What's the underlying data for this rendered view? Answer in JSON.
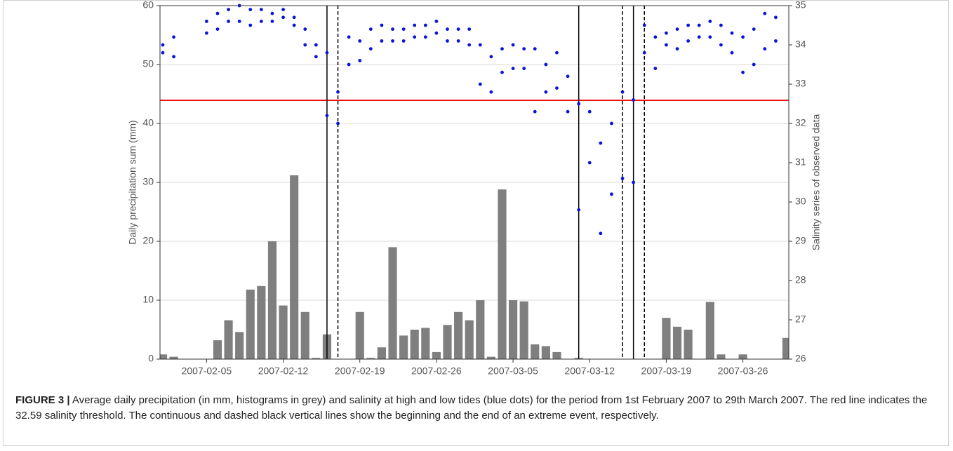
{
  "chart_data": [
    {
      "type": "bar",
      "ylabel": "Daily precipitation sum (mm)",
      "color": "#7f7f7f",
      "grid": true,
      "xlim": [
        "2007-02-01",
        "2007-03-30"
      ],
      "xticks": [
        "2007-02-05",
        "2007-02-12",
        "2007-02-19",
        "2007-02-26",
        "2007-03-05",
        "2007-03-12",
        "2007-03-19",
        "2007-03-26"
      ],
      "ylim": [
        0,
        60
      ],
      "yticks": [
        0,
        10,
        20,
        30,
        40,
        50,
        60
      ],
      "x": [
        "2007-02-01",
        "2007-02-02",
        "2007-02-03",
        "2007-02-04",
        "2007-02-05",
        "2007-02-06",
        "2007-02-07",
        "2007-02-08",
        "2007-02-09",
        "2007-02-10",
        "2007-02-11",
        "2007-02-12",
        "2007-02-13",
        "2007-02-14",
        "2007-02-15",
        "2007-02-16",
        "2007-02-17",
        "2007-02-18",
        "2007-02-19",
        "2007-02-20",
        "2007-02-21",
        "2007-02-22",
        "2007-02-23",
        "2007-02-24",
        "2007-02-25",
        "2007-02-26",
        "2007-02-27",
        "2007-02-28",
        "2007-03-01",
        "2007-03-02",
        "2007-03-03",
        "2007-03-04",
        "2007-03-05",
        "2007-03-06",
        "2007-03-07",
        "2007-03-08",
        "2007-03-09",
        "2007-03-10",
        "2007-03-11",
        "2007-03-12",
        "2007-03-13",
        "2007-03-14",
        "2007-03-15",
        "2007-03-16",
        "2007-03-17",
        "2007-03-18",
        "2007-03-19",
        "2007-03-20",
        "2007-03-21",
        "2007-03-22",
        "2007-03-23",
        "2007-03-24",
        "2007-03-25",
        "2007-03-26",
        "2007-03-27",
        "2007-03-28",
        "2007-03-29",
        "2007-03-30"
      ],
      "values": [
        0.8,
        0.4,
        0,
        0,
        0,
        3.2,
        6.6,
        4.6,
        11.8,
        12.4,
        20,
        9.1,
        31.2,
        8.0,
        0.2,
        4.2,
        0,
        0,
        8.0,
        0.2,
        2.0,
        19,
        4,
        5,
        5.3,
        1.2,
        5.8,
        8.0,
        6.6,
        10,
        0.4,
        28.8,
        10,
        9.8,
        2.5,
        2.2,
        1.2,
        0,
        0.2,
        0,
        0,
        0,
        0,
        0,
        0,
        0,
        7.0,
        5.5,
        5.0,
        0,
        9.7,
        0.8,
        0,
        0.8,
        0,
        0,
        0,
        3.6
      ]
    },
    {
      "type": "scatter",
      "ylabel": "Salinity series of observed data",
      "color": "#0a14d8",
      "ylim": [
        26,
        35
      ],
      "yticks": [
        26,
        27,
        28,
        29,
        30,
        31,
        32,
        33,
        34,
        35
      ],
      "threshold": {
        "value": 32.59,
        "color": "#ee1111"
      },
      "event_starts": [
        "2007-02-16",
        "2007-03-11",
        "2007-03-16"
      ],
      "event_ends": [
        "2007-02-17",
        "2007-03-15",
        "2007-03-17"
      ],
      "x": [
        "2007-02-01",
        "2007-02-01",
        "2007-02-02",
        "2007-02-02",
        "2007-02-05",
        "2007-02-05",
        "2007-02-06",
        "2007-02-06",
        "2007-02-07",
        "2007-02-07",
        "2007-02-08",
        "2007-02-08",
        "2007-02-09",
        "2007-02-09",
        "2007-02-10",
        "2007-02-10",
        "2007-02-11",
        "2007-02-11",
        "2007-02-12",
        "2007-02-12",
        "2007-02-13",
        "2007-02-13",
        "2007-02-14",
        "2007-02-14",
        "2007-02-15",
        "2007-02-15",
        "2007-02-16",
        "2007-02-16",
        "2007-02-17",
        "2007-02-17",
        "2007-02-18",
        "2007-02-18",
        "2007-02-19",
        "2007-02-19",
        "2007-02-20",
        "2007-02-20",
        "2007-02-21",
        "2007-02-21",
        "2007-02-22",
        "2007-02-22",
        "2007-02-23",
        "2007-02-23",
        "2007-02-24",
        "2007-02-24",
        "2007-02-25",
        "2007-02-25",
        "2007-02-26",
        "2007-02-26",
        "2007-02-27",
        "2007-02-27",
        "2007-02-28",
        "2007-02-28",
        "2007-03-01",
        "2007-03-01",
        "2007-03-02",
        "2007-03-02",
        "2007-03-03",
        "2007-03-03",
        "2007-03-04",
        "2007-03-04",
        "2007-03-05",
        "2007-03-05",
        "2007-03-06",
        "2007-03-06",
        "2007-03-07",
        "2007-03-07",
        "2007-03-08",
        "2007-03-08",
        "2007-03-09",
        "2007-03-09",
        "2007-03-10",
        "2007-03-10",
        "2007-03-11",
        "2007-03-11",
        "2007-03-12",
        "2007-03-12",
        "2007-03-13",
        "2007-03-13",
        "2007-03-14",
        "2007-03-14",
        "2007-03-15",
        "2007-03-15",
        "2007-03-16",
        "2007-03-16",
        "2007-03-17",
        "2007-03-17",
        "2007-03-18",
        "2007-03-18",
        "2007-03-19",
        "2007-03-19",
        "2007-03-20",
        "2007-03-20",
        "2007-03-21",
        "2007-03-21",
        "2007-03-22",
        "2007-03-22",
        "2007-03-23",
        "2007-03-23",
        "2007-03-24",
        "2007-03-24",
        "2007-03-25",
        "2007-03-25",
        "2007-03-26",
        "2007-03-26",
        "2007-03-27",
        "2007-03-27",
        "2007-03-28",
        "2007-03-28",
        "2007-03-29",
        "2007-03-29"
      ],
      "values": [
        34.0,
        33.8,
        34.2,
        33.7,
        34.6,
        34.3,
        34.8,
        34.4,
        34.9,
        34.6,
        35.0,
        34.6,
        34.9,
        34.5,
        34.9,
        34.6,
        34.8,
        34.6,
        34.9,
        34.7,
        34.7,
        34.5,
        34.4,
        34.0,
        34.0,
        33.7,
        33.8,
        32.2,
        32.8,
        32.0,
        34.2,
        33.5,
        34.1,
        33.6,
        34.4,
        33.9,
        34.5,
        34.1,
        34.4,
        34.1,
        34.4,
        34.1,
        34.5,
        34.2,
        34.5,
        34.2,
        34.6,
        34.3,
        34.4,
        34.1,
        34.4,
        34.1,
        34.4,
        34.0,
        34.0,
        33.0,
        33.7,
        32.8,
        33.9,
        33.3,
        34.0,
        33.4,
        33.9,
        33.4,
        33.9,
        32.3,
        33.5,
        32.8,
        33.8,
        32.9,
        33.2,
        32.3,
        32.5,
        29.8,
        32.3,
        31.0,
        31.5,
        29.2,
        32.0,
        30.2,
        32.8,
        30.6,
        32.6,
        30.5,
        34.5,
        33.8,
        34.2,
        33.4,
        34.3,
        34.0,
        34.4,
        33.9,
        34.5,
        34.1,
        34.5,
        34.2,
        34.6,
        34.2,
        34.5,
        34.0,
        34.3,
        33.8,
        34.2,
        33.3,
        34.4,
        33.5,
        34.8,
        33.9,
        34.7,
        34.1
      ]
    }
  ],
  "caption": {
    "label": "FIGURE 3 |",
    "text": "Average daily precipitation (in mm, histograms in grey) and salinity at high and low tides (blue dots) for the period from 1st February 2007 to 29th March 2007. The red line indicates the 32.59 salinity threshold. The continuous and dashed black vertical lines show the beginning and the end of an extreme event, respectively."
  }
}
